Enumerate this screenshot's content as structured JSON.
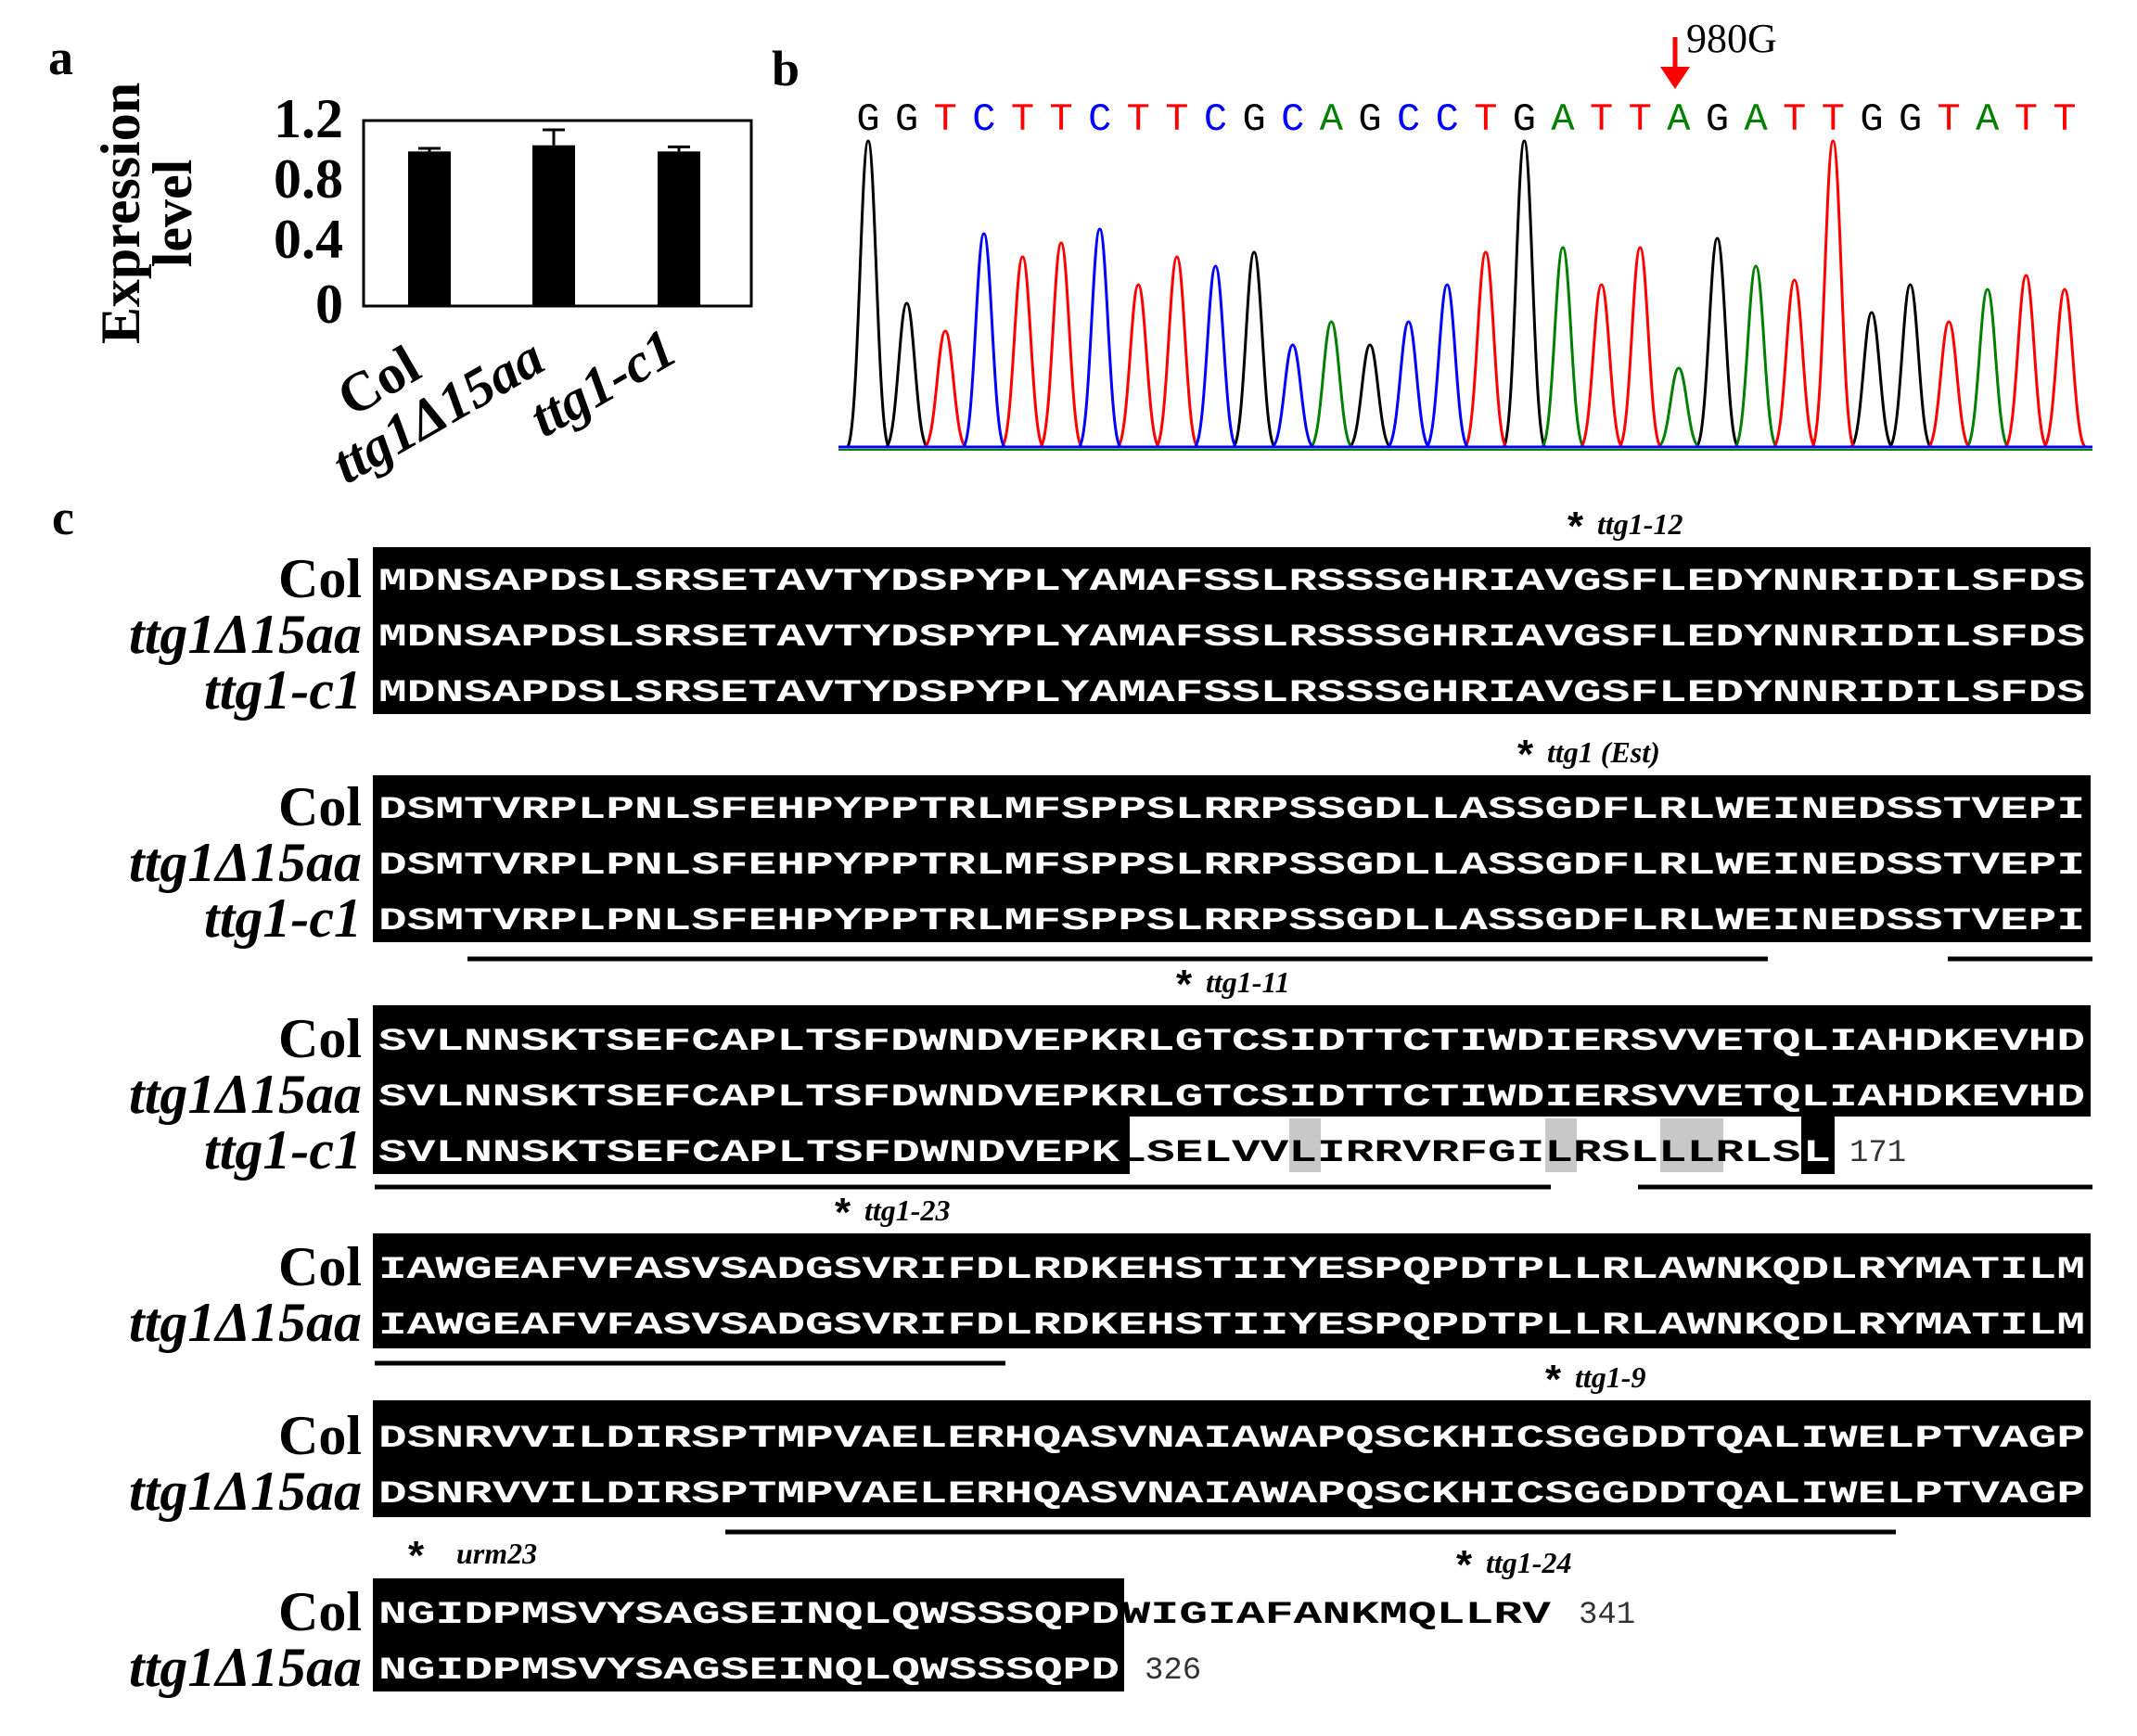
{
  "panel_a": {
    "letter": "a",
    "ylabel_lines": [
      "Expression",
      "level"
    ],
    "yticks": [
      "1.2",
      "0.8",
      "0.4",
      "0"
    ],
    "chart_data": {
      "type": "bar",
      "categories": [
        "Col",
        "ttg1Δ15aa",
        "ttg1-c1"
      ],
      "values": [
        1.0,
        1.04,
        1.0
      ],
      "errors": [
        0.02,
        0.1,
        0.03
      ],
      "ylabel": "Expression level",
      "ylim": [
        0,
        1.2
      ],
      "colors": {
        "bars": "#000000"
      }
    }
  },
  "panel_b": {
    "letter": "b",
    "mutation_label": "980G",
    "arrow_color": "#ff0000",
    "bases": "GGTCTTCTTCGCAGCCTGATTAGATTGGTATT",
    "base_colors": {
      "G": "#000000",
      "A": "#008000",
      "T": "#ff0000",
      "C": "#0000ff"
    }
  },
  "panel_c": {
    "letter": "c",
    "blocks": [
      {
        "markers": [
          {
            "label": "ttg1-12"
          }
        ],
        "rows": [
          {
            "name": "Col",
            "italic": false,
            "seq": "MDNSAPDSLSRSETAVTYDSPYPLYAMAFSSLRSSSGHRIAVGSFLEDYNNRIDILSFDS"
          },
          {
            "name": "ttg1Δ15aa",
            "italic": true,
            "seq": "MDNSAPDSLSRSETAVTYDSPYPLYAMAFSSLRSSSGHRIAVGSFLEDYNNRIDILSFDS"
          },
          {
            "name": "ttg1-c1",
            "italic": true,
            "seq": "MDNSAPDSLSRSETAVTYDSPYPLYAMAFSSLRSSSGHRIAVGSFLEDYNNRIDILSFDS"
          }
        ]
      },
      {
        "markers": [
          {
            "label": "ttg1 (Est)"
          }
        ],
        "rows": [
          {
            "name": "Col",
            "italic": false,
            "seq": "DSMTVRPLPNLSFEHPYPPTRLMFSPPSLRRPSSGDLLASSGDFLRLWEINEDSSTVEPI"
          },
          {
            "name": "ttg1Δ15aa",
            "italic": true,
            "seq": "DSMTVRPLPNLSFEHPYPPTRLMFSPPSLRRPSSGDLLASSGDFLRLWEINEDSSTVEPI"
          },
          {
            "name": "ttg1-c1",
            "italic": true,
            "seq": "DSMTVRPLPNLSFEHPYPPTRLMFSPPSLRRPSSGDLLASSGDFLRLWEINEDSSTVEPI"
          }
        ]
      },
      {
        "markers": [
          {
            "label": "ttg1-11"
          }
        ],
        "rows": [
          {
            "name": "Col",
            "italic": false,
            "seq": "SVLNNSKTSEFCAPLTSFDWNDVEPKRLGTCSIDTTCTIWDIERSVVETQLIAHDKEVHD"
          },
          {
            "name": "ttg1Δ15aa",
            "italic": true,
            "seq": "SVLNNSKTSEFCAPLTSFDWNDVEPKRLGTCSIDTTCTIWDIERSVVETQLIAHDKEVHD"
          },
          {
            "name": "ttg1-c1",
            "italic": true,
            "seq": "SVLNNSKTSEFCAPLTSFDWNDVEPKLSELVVLIRRVRFGILRSLLLRLSL",
            "end": "171"
          }
        ]
      },
      {
        "markers": [
          {
            "label": "ttg1-23"
          }
        ],
        "rows": [
          {
            "name": "Col",
            "italic": false,
            "seq": "IAWGEAFVFASVSADGSVRIFDLRDKEHSTIIYESPQPDTPLLRLAWNKQDLRYMATILM"
          },
          {
            "name": "ttg1Δ15aa",
            "italic": true,
            "seq": "IAWGEAFVFASVSADGSVRIFDLRDKEHSTIIYESPQPDTPLLRLAWNKQDLRYMATILM"
          }
        ]
      },
      {
        "markers": [
          {
            "label": "ttg1-9"
          }
        ],
        "rows": [
          {
            "name": "Col",
            "italic": false,
            "seq": "DSNRVVILDIRSPTMPVAELERHQASVNAIAWAPQSCKHICSGGDDTQALIWELPTVAGP"
          },
          {
            "name": "ttg1Δ15aa",
            "italic": true,
            "seq": "DSNRVVILDIRSPTMPVAELERHQASVNAIAWAPQSCKHICSGGDDTQALIWELPTVAGP"
          }
        ]
      },
      {
        "markers": [
          {
            "label": "urm23"
          },
          {
            "label": "ttg1-24"
          }
        ],
        "rows": [
          {
            "name": "Col",
            "italic": false,
            "seq": "NGIDPMSVYSAGSEINQLQWSSSQPDWIGIAFANKMQLLRV",
            "end": "341"
          },
          {
            "name": "ttg1Δ15aa",
            "italic": true,
            "seq": "NGIDPMSVYSAGSEINQLQWSSSQPD",
            "end": "326"
          }
        ]
      }
    ]
  }
}
